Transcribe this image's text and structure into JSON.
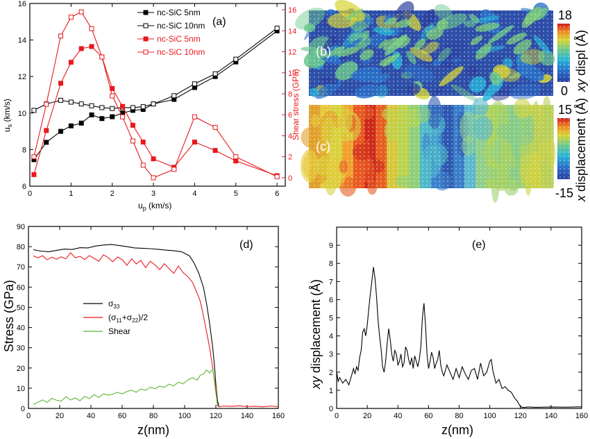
{
  "chart_data": [
    {
      "panel": "(a)",
      "type": "line",
      "xlabel": "u",
      "xlabel_sub": "p",
      "xlabel_unit": " (km/s)",
      "ylabel": "u",
      "ylabel_sub": "s",
      "ylabel_unit": " (km/s)",
      "y2label": "Shear stress (GPa)",
      "xlim": [
        0,
        6.2
      ],
      "ylim": [
        6,
        16
      ],
      "y2lim": [
        -0.8,
        16.6
      ],
      "xticks": [
        "0",
        "1",
        "2",
        "3",
        "4",
        "5",
        "6"
      ],
      "yticks": [
        "6",
        "8",
        "10",
        "12",
        "14",
        "16"
      ],
      "y2ticks": [
        "0",
        "2",
        "4",
        "6",
        "8",
        "10",
        "12",
        "14",
        "16"
      ],
      "legend_position": "top-right",
      "series": [
        {
          "name": "nc-SiC 5nm",
          "axis": "left",
          "color": "#000000",
          "marker": "filled-square",
          "x": [
            0.1,
            0.4,
            0.75,
            1.0,
            1.25,
            1.5,
            1.75,
            2.0,
            2.25,
            2.5,
            2.75,
            3.0,
            3.5,
            4.0,
            4.5,
            5.0,
            6.0
          ],
          "y": [
            7.45,
            8.4,
            9.0,
            9.3,
            9.45,
            9.9,
            9.7,
            9.8,
            10.0,
            10.15,
            10.2,
            10.5,
            10.75,
            11.4,
            12.0,
            12.8,
            14.5
          ]
        },
        {
          "name": "nc-SiC 10nm",
          "axis": "left",
          "color": "#000000",
          "marker": "open-square",
          "x": [
            0.1,
            0.4,
            0.75,
            1.0,
            1.25,
            1.5,
            1.75,
            2.0,
            2.25,
            2.5,
            2.75,
            3.0,
            3.5,
            4.0,
            4.5,
            5.0,
            6.0
          ],
          "y": [
            10.15,
            10.5,
            10.7,
            10.6,
            10.5,
            10.4,
            10.3,
            10.25,
            10.3,
            10.3,
            10.35,
            10.5,
            10.95,
            11.6,
            12.15,
            12.95,
            14.65
          ]
        },
        {
          "name": "nc-SiC 5nm",
          "axis": "right",
          "color": "#e8191c",
          "marker": "filled-square",
          "x": [
            0.1,
            0.4,
            0.75,
            1.0,
            1.25,
            1.5,
            1.75,
            2.0,
            2.25,
            2.5,
            2.75,
            3.0,
            3.5,
            4.0,
            4.5,
            5.0,
            6.0
          ],
          "y": [
            0.3,
            4.5,
            9.0,
            11.0,
            12.3,
            12.5,
            11.5,
            8.5,
            6.8,
            5.0,
            3.4,
            1.8,
            1.0,
            3.4,
            2.6,
            1.6,
            0.2
          ]
        },
        {
          "name": "nc-SiC 10nm",
          "axis": "right",
          "color": "#e8191c",
          "marker": "open-square",
          "x": [
            0.1,
            0.4,
            0.75,
            1.0,
            1.25,
            1.5,
            1.75,
            2.0,
            2.25,
            2.5,
            2.75,
            3.0,
            3.5,
            4.0,
            4.5,
            5.0,
            6.0
          ],
          "y": [
            2.0,
            7.0,
            13.5,
            15.3,
            15.8,
            14.2,
            11.5,
            7.8,
            5.8,
            3.5,
            1.2,
            0.0,
            0.8,
            5.8,
            4.8,
            2.0,
            0.1
          ]
        }
      ]
    },
    {
      "panel": "(b)",
      "type": "heatmap",
      "colorbar_label_prefix": "xy",
      "colorbar_label": " displ (Å)",
      "colorbar_range": [
        "0",
        "18"
      ],
      "tag": "(b)"
    },
    {
      "panel": "(c)",
      "type": "heatmap",
      "colorbar_label_prefix": "x",
      "colorbar_label": " displacement (Å)",
      "colorbar_range": [
        "-15",
        "15"
      ],
      "tag": "(c)"
    },
    {
      "panel": "(d)",
      "type": "line",
      "xlabel": "z(nm)",
      "ylabel": "Stress (GPa)",
      "xlim": [
        0,
        160
      ],
      "ylim": [
        0,
        90
      ],
      "xticks": [
        "0",
        "20",
        "40",
        "60",
        "80",
        "100",
        "120",
        "140",
        "160"
      ],
      "yticks": [
        "0",
        "10",
        "20",
        "30",
        "40",
        "50",
        "60",
        "70",
        "80",
        "90"
      ],
      "legend_position": "center-left",
      "series": [
        {
          "name": "σ33",
          "name_base": "σ",
          "name_sub": "33",
          "color": "#000000",
          "x": [
            3,
            8,
            13,
            18,
            23,
            28,
            33,
            38,
            43,
            48,
            53,
            58,
            63,
            68,
            73,
            78,
            83,
            88,
            93,
            98,
            103,
            106,
            109,
            112,
            114,
            116,
            118,
            119,
            120,
            121,
            122
          ],
          "y": [
            78.5,
            77.8,
            77.5,
            78.2,
            78.8,
            78.6,
            79.5,
            79.4,
            80.3,
            80.8,
            81.1,
            80.6,
            80.0,
            79.4,
            79.2,
            79.0,
            78.7,
            78.3,
            78.0,
            77.5,
            75.5,
            72,
            67,
            60,
            52,
            42,
            30,
            22,
            12,
            4,
            0.8
          ]
        },
        {
          "name": "(σ11+σ22)/2",
          "name_parts": [
            "(σ",
            "11",
            "+σ",
            "22",
            ")/2"
          ],
          "color": "#e8191c",
          "x": [
            3,
            6,
            9,
            12,
            15,
            18,
            21,
            24,
            27,
            30,
            33,
            36,
            39,
            42,
            45,
            48,
            51,
            54,
            57,
            60,
            63,
            66,
            69,
            72,
            75,
            78,
            81,
            84,
            87,
            90,
            93,
            96,
            99,
            102,
            105,
            108,
            110,
            112,
            114,
            116,
            118,
            120,
            121,
            122,
            125,
            130,
            135,
            140,
            145,
            150,
            155,
            160
          ],
          "y": [
            75.5,
            74.5,
            75.5,
            73.5,
            74.8,
            73.8,
            75.0,
            74.0,
            77.0,
            74.5,
            75.2,
            73.6,
            75.6,
            74.2,
            72.8,
            76.0,
            74.6,
            72.5,
            74.8,
            73.6,
            70.8,
            74.0,
            71.5,
            73.2,
            69.6,
            72.8,
            71.0,
            68.6,
            71.6,
            69.2,
            66.8,
            70.4,
            67.2,
            65.2,
            62.4,
            57.0,
            53.0,
            46.0,
            38.0,
            30.0,
            20.0,
            8.0,
            2.0,
            0.8,
            1.2,
            1.0,
            1.3,
            0.9,
            1.1,
            0.8,
            1.2,
            0.9
          ]
        },
        {
          "name": "Shear",
          "color": "#5cb532",
          "x": [
            3,
            6,
            9,
            12,
            15,
            18,
            21,
            24,
            27,
            30,
            33,
            36,
            39,
            42,
            45,
            48,
            51,
            54,
            57,
            60,
            63,
            66,
            69,
            72,
            75,
            78,
            81,
            84,
            87,
            90,
            93,
            96,
            99,
            102,
            105,
            108,
            110,
            112,
            114,
            116,
            118,
            120,
            121
          ],
          "y": [
            2.0,
            3.0,
            4.2,
            3.0,
            5.0,
            4.0,
            3.6,
            5.8,
            4.2,
            5.2,
            3.8,
            6.0,
            4.8,
            6.8,
            5.4,
            7.2,
            6.6,
            7.0,
            8.0,
            7.2,
            8.4,
            9.0,
            8.0,
            9.6,
            9.0,
            10.4,
            9.8,
            11.0,
            10.4,
            12.0,
            11.2,
            13.0,
            12.2,
            14.0,
            15.2,
            14.0,
            16.4,
            17.0,
            19.0,
            17.6,
            19.4,
            10.0,
            1.0
          ]
        }
      ]
    },
    {
      "panel": "(e)",
      "type": "line",
      "xlabel": "z(nm)",
      "ylabel_prefix": "xy",
      "ylabel": " displacement (Å)",
      "xlim": [
        0,
        160
      ],
      "ylim": [
        0,
        10
      ],
      "xticks": [
        "0",
        "20",
        "40",
        "60",
        "80",
        "100",
        "120",
        "140",
        "160"
      ],
      "yticks": [
        "0",
        "1",
        "2",
        "3",
        "4",
        "5",
        "6",
        "7",
        "8",
        "9"
      ],
      "series": [
        {
          "color": "#000000",
          "x": [
            0,
            1,
            2,
            4,
            6,
            8,
            10,
            11,
            12,
            13,
            14,
            15,
            16,
            17,
            18,
            19,
            20,
            21,
            22,
            23,
            24,
            25,
            26,
            27,
            28,
            29,
            30,
            31,
            32,
            33,
            34,
            35,
            36,
            37,
            38,
            39,
            40,
            41,
            42,
            43,
            44,
            45,
            46,
            47,
            48,
            49,
            50,
            51,
            52,
            53,
            54,
            55,
            56,
            57,
            58,
            59,
            60,
            61,
            62,
            63,
            64,
            65,
            66,
            67,
            68,
            69,
            70,
            72,
            74,
            76,
            78,
            80,
            82,
            84,
            86,
            88,
            90,
            92,
            94,
            96,
            98,
            100,
            101,
            102,
            104,
            106,
            108,
            110,
            112,
            114,
            116,
            118,
            120,
            122,
            125,
            130,
            140,
            150,
            160
          ],
          "y": [
            2.0,
            1.5,
            1.7,
            1.4,
            1.6,
            1.3,
            1.9,
            2.2,
            1.9,
            2.3,
            2.1,
            2.8,
            3.2,
            4.2,
            4.4,
            4.0,
            4.6,
            5.5,
            6.3,
            7.0,
            7.8,
            7.2,
            6.2,
            4.9,
            4.0,
            3.3,
            2.3,
            2.0,
            2.6,
            3.6,
            4.4,
            3.8,
            3.0,
            2.6,
            3.2,
            3.0,
            2.4,
            2.6,
            3.0,
            2.3,
            2.5,
            3.4,
            3.2,
            2.7,
            2.4,
            2.8,
            2.2,
            2.9,
            2.6,
            2.3,
            2.7,
            3.4,
            5.0,
            5.8,
            4.6,
            3.0,
            2.2,
            2.6,
            3.1,
            2.8,
            2.2,
            2.5,
            2.7,
            3.2,
            2.4,
            2.0,
            1.8,
            2.4,
            2.0,
            1.6,
            2.2,
            1.7,
            2.3,
            1.9,
            1.6,
            2.1,
            2.2,
            1.6,
            2.5,
            1.8,
            2.0,
            2.6,
            2.7,
            2.1,
            1.4,
            1.6,
            1.1,
            1.2,
            1.0,
            0.9,
            0.6,
            0.4,
            0.1,
            0.05,
            0.08,
            0.06,
            0.08,
            0.07,
            0.09
          ]
        }
      ]
    }
  ],
  "tags": {
    "a": "(a)",
    "b": "(b)",
    "c": "(c)",
    "d": "(d)",
    "e": "(e)"
  },
  "colormap": [
    "#2b3e9e",
    "#2a70c8",
    "#28b5d8",
    "#6cc88c",
    "#d6d433",
    "#f08a24",
    "#cc1f1f"
  ]
}
